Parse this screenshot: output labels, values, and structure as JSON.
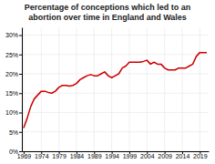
{
  "chart_data": {
    "type": "line",
    "title": "Percentage of conceptions which led to an\nabortion over time in England and Wales",
    "x": [
      1969,
      1970,
      1971,
      1972,
      1973,
      1974,
      1975,
      1976,
      1977,
      1978,
      1979,
      1980,
      1981,
      1982,
      1983,
      1984,
      1985,
      1986,
      1987,
      1988,
      1989,
      1990,
      1991,
      1992,
      1993,
      1994,
      1995,
      1996,
      1997,
      1998,
      1999,
      2000,
      2001,
      2002,
      2003,
      2004,
      2005,
      2006,
      2007,
      2008,
      2009,
      2010,
      2011,
      2012,
      2013,
      2014,
      2015,
      2016,
      2017,
      2018,
      2019,
      2020,
      2021
    ],
    "values": [
      6.0,
      8.5,
      11.5,
      13.5,
      14.5,
      15.5,
      15.5,
      15.2,
      15.0,
      15.5,
      16.5,
      17.0,
      17.0,
      16.8,
      17.0,
      17.5,
      18.5,
      19.0,
      19.5,
      19.8,
      19.5,
      19.5,
      20.0,
      20.5,
      19.5,
      19.0,
      19.5,
      20.0,
      21.5,
      22.0,
      23.0,
      23.0,
      23.0,
      23.0,
      23.2,
      23.5,
      22.5,
      23.0,
      22.5,
      22.5,
      21.5,
      21.0,
      21.0,
      21.0,
      21.5,
      21.5,
      21.5,
      22.0,
      22.5,
      24.5,
      25.5,
      25.5,
      25.5
    ],
    "color": "#cc0000",
    "xlim": [
      1968.5,
      2021.5
    ],
    "xticks": [
      1969,
      1974,
      1979,
      1984,
      1989,
      1994,
      1999,
      2004,
      2009,
      2014,
      2019
    ],
    "ylim": [
      0,
      32
    ],
    "yticks": [
      {
        "value": 0,
        "label": "0%"
      },
      {
        "value": 5,
        "label": "5%"
      },
      {
        "value": 10,
        "label": "10%"
      },
      {
        "value": 15,
        "label": "15%"
      },
      {
        "value": 20,
        "label": "20%"
      },
      {
        "value": 25,
        "label": "25%"
      },
      {
        "value": 30,
        "label": "30%"
      }
    ],
    "grid": true
  }
}
